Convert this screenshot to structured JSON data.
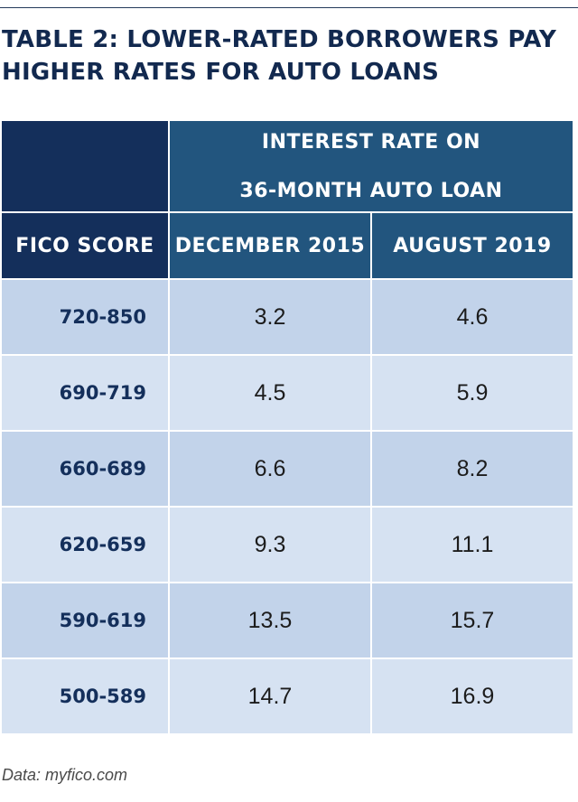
{
  "title": "TABLE 2: LOWER-RATED BORROWERS PAY HIGHER RATES FOR AUTO LOANS",
  "source": "Data: myfico.com",
  "colors": {
    "header_dark": "#142f5b",
    "header_blue": "#22557e",
    "row_light_a": "#c2d3ea",
    "row_light_b": "#d6e2f2",
    "fico_text": "#142f5b"
  },
  "chart_data": {
    "type": "table",
    "title": "TABLE 2: LOWER-RATED BORROWERS PAY HIGHER RATES FOR AUTO LOANS",
    "group_header": "INTEREST RATE ON 36-MONTH AUTO LOAN",
    "columns": [
      "FICO SCORE",
      "DECEMBER 2015",
      "AUGUST 2019"
    ],
    "rows": [
      [
        "720-850",
        "3.2",
        "4.6"
      ],
      [
        "690-719",
        "4.5",
        "5.9"
      ],
      [
        "660-689",
        "6.6",
        "8.2"
      ],
      [
        "620-659",
        "9.3",
        "11.1"
      ],
      [
        "590-619",
        "13.5",
        "15.7"
      ],
      [
        "500-589",
        "14.7",
        "16.9"
      ]
    ]
  }
}
